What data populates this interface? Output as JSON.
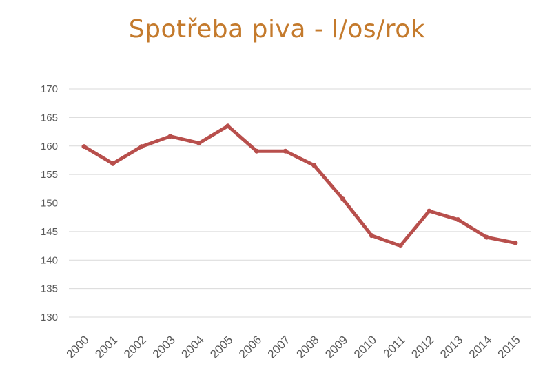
{
  "chart_data": {
    "type": "line",
    "title": "Spotřeba piva - l/os/rok",
    "xlabel": "",
    "ylabel": "",
    "categories": [
      "2000",
      "2001",
      "2002",
      "2003",
      "2004",
      "2005",
      "2006",
      "2007",
      "2008",
      "2009",
      "2010",
      "2011",
      "2012",
      "2013",
      "2014",
      "2015"
    ],
    "series": [
      {
        "values": [
          159.9,
          156.9,
          159.9,
          161.7,
          160.5,
          163.5,
          159.1,
          159.1,
          156.6,
          150.7,
          144.3,
          142.5,
          148.6,
          147.1,
          144.0,
          143.0
        ]
      }
    ],
    "yticks": [
      130,
      135,
      140,
      145,
      150,
      155,
      160,
      165,
      170
    ],
    "ylim": [
      130,
      170
    ],
    "grid": true,
    "legend": "none",
    "colors": {
      "series": "#b84f4c",
      "title": "#c47a2c",
      "grid": "#d9d9d9",
      "ticks": "#595959"
    }
  }
}
